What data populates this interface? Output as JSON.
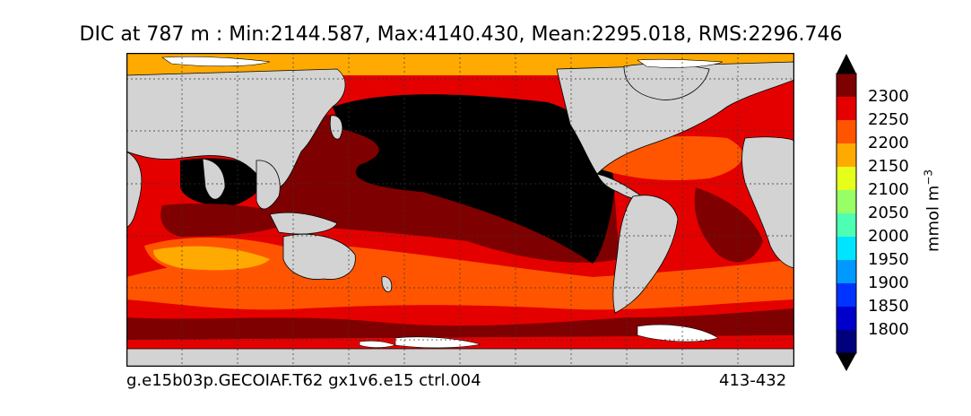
{
  "title": "DIC at 787 m : Min:2144.587, Max:4140.430, Mean:2295.018, RMS:2296.746",
  "caption_left": "g.e15b03p.GECOIAF.T62 gx1v6.e15 ctrl.004",
  "caption_right": "413-432",
  "colorbar": {
    "units_base": "mmol m",
    "units_exp": "−3",
    "levels": [
      "1800",
      "1850",
      "1900",
      "1950",
      "2000",
      "2050",
      "2100",
      "2150",
      "2200",
      "2250",
      "2300"
    ],
    "colors": [
      "#00007f",
      "#0000cd",
      "#0033ff",
      "#0099ff",
      "#00e5ff",
      "#4dffb3",
      "#99ff66",
      "#e5ff1a",
      "#ffaa00",
      "#ff5500",
      "#e50000",
      "#7f0000"
    ]
  },
  "map": {
    "land_color": "#d3d3d3",
    "ice_color": "#ffffff",
    "grid": "dashed"
  }
}
